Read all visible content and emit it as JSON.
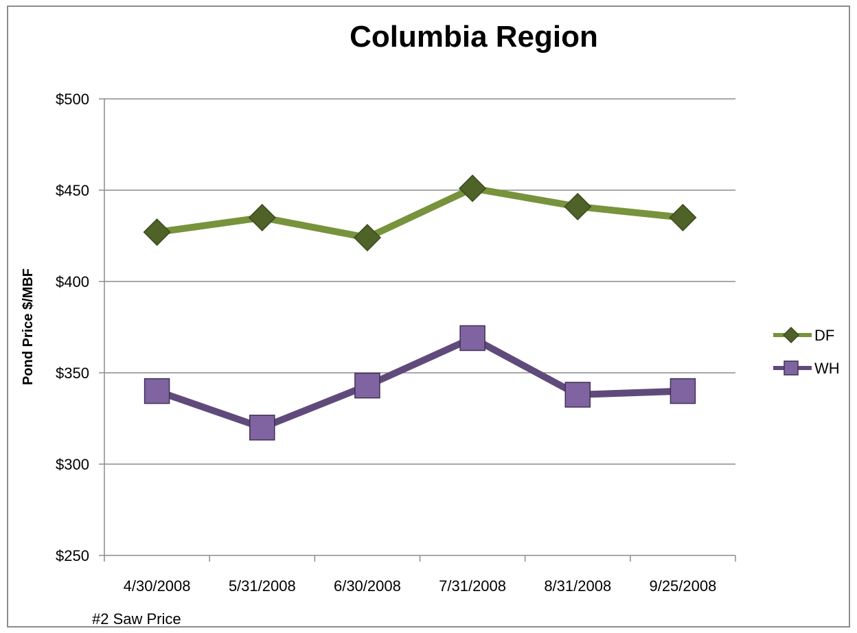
{
  "chart_data": {
    "type": "line",
    "title": "Columbia Region",
    "ylabel": "Pond Price $/MBF",
    "xlabel": "",
    "footnote": "#2 Saw Price",
    "categories": [
      "4/30/2008",
      "5/31/2008",
      "6/30/2008",
      "7/31/2008",
      "8/31/2008",
      "9/25/2008"
    ],
    "ylim": [
      250,
      500
    ],
    "yticks": [
      250,
      300,
      350,
      400,
      450,
      500
    ],
    "ytick_labels": [
      "$250",
      "$300",
      "$350",
      "$400",
      "$450",
      "$500"
    ],
    "grid": true,
    "legend": "right",
    "series": [
      {
        "name": "DF",
        "values": [
          427,
          435,
          424,
          451,
          441,
          435
        ],
        "color": "#77933c",
        "marker": "diamond",
        "marker_color": "#4f6228"
      },
      {
        "name": "WH",
        "values": [
          340,
          320,
          343,
          369,
          338,
          340
        ],
        "color": "#604a7b",
        "marker": "square",
        "marker_color": "#8064a2"
      }
    ]
  }
}
